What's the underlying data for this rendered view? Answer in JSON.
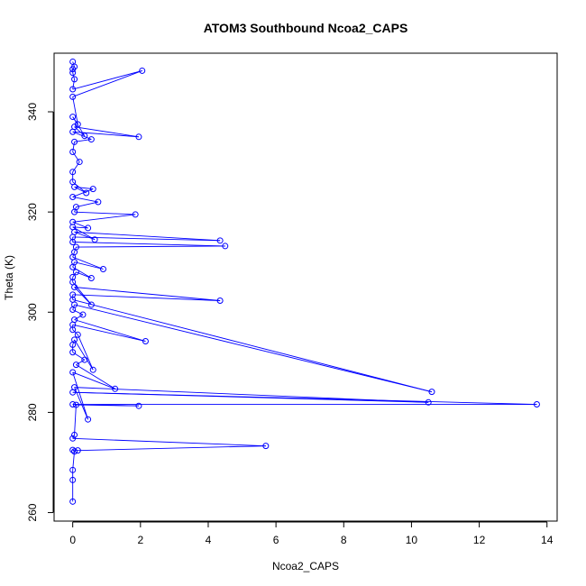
{
  "chart_data": {
    "type": "line",
    "title": "ATOM3 Southbound Ncoa2_CAPS",
    "xlabel": "Ncoa2_CAPS",
    "ylabel": "Theta (K)",
    "xlim": [
      -0.55,
      14.3
    ],
    "ylim": [
      258.3,
      351.7
    ],
    "x_ticks": [
      0,
      2,
      4,
      6,
      8,
      10,
      12,
      14
    ],
    "y_ticks": [
      260,
      280,
      300,
      320,
      340
    ],
    "grid": false,
    "legend": "none",
    "series": [
      {
        "color": "#0000ff",
        "marker": "open-circle",
        "x": [
          0.0,
          0.0,
          0.0,
          0.05,
          0.0,
          0.15,
          5.7,
          0.0,
          0.05,
          0.1,
          1.95,
          0.0,
          13.7,
          0.0,
          10.5,
          0.05,
          0.45,
          0.0,
          1.25,
          0.1,
          0.35,
          0.0,
          0.0,
          0.05,
          0.6,
          0.15,
          0.0,
          0.0,
          2.15,
          0.05,
          0.3,
          0.0,
          0.05,
          10.6,
          0.0,
          0.0,
          4.35,
          0.05,
          0.55,
          0.0,
          0.0,
          0.1,
          0.55,
          0.0,
          0.05,
          0.9,
          0.0,
          0.05,
          0.1,
          4.5,
          0.0,
          0.0,
          4.35,
          0.05,
          0.65,
          0.0,
          0.45,
          0.0,
          1.85,
          0.05,
          0.1,
          0.75,
          0.0,
          0.6,
          0.05,
          0.4,
          0.0,
          0.0,
          0.2,
          0.0,
          0.05,
          0.55,
          0.0,
          1.95,
          0.05,
          0.35,
          0.0,
          0.15,
          0.0,
          2.05,
          0.0,
          0.05,
          0.0,
          0.0,
          0.05,
          0.0
        ],
        "y": [
          262.2,
          266.5,
          268.5,
          272.2,
          272.5,
          272.4,
          273.3,
          274.8,
          275.5,
          281.5,
          281.3,
          281.6,
          281.6,
          284.0,
          282.0,
          285.0,
          278.6,
          288.0,
          284.7,
          289.5,
          290.5,
          292.0,
          293.5,
          294.5,
          288.5,
          295.5,
          296.5,
          297.5,
          294.2,
          298.5,
          299.5,
          300.5,
          301.5,
          284.1,
          302.5,
          303.5,
          302.3,
          305.0,
          301.5,
          306.0,
          307.0,
          308.0,
          306.8,
          309.0,
          310.0,
          308.6,
          311.0,
          312.0,
          313.0,
          313.2,
          314.0,
          315.0,
          314.3,
          316.0,
          314.5,
          317.0,
          316.8,
          318.0,
          319.5,
          320.0,
          321.0,
          322.0,
          323.0,
          324.6,
          325.0,
          323.8,
          326.0,
          328.0,
          330.0,
          332.0,
          334.0,
          334.5,
          336.0,
          335.0,
          337.0,
          335.2,
          339.0,
          337.5,
          343.0,
          348.2,
          344.5,
          346.5,
          347.8,
          348.5,
          349.0,
          350.0
        ]
      }
    ]
  }
}
